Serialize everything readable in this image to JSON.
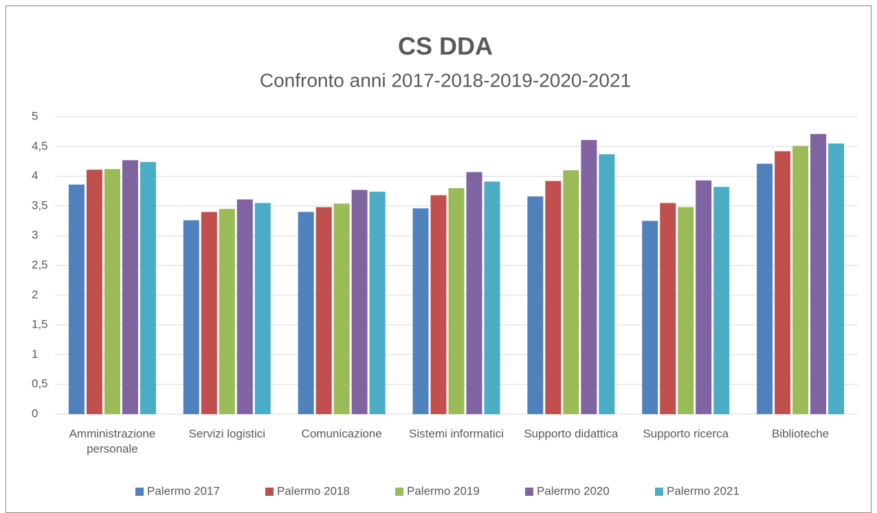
{
  "chart_data": {
    "type": "bar",
    "title": "CS DDA",
    "subtitle": "Confronto anni 2017-2018-2019-2020-2021",
    "categories": [
      "Amministrazione personale",
      "Servizi logistici",
      "Comunicazione",
      "Sistemi informatici",
      "Supporto didattica",
      "Supporto ricerca",
      "Biblioteche"
    ],
    "series": [
      {
        "name": "Palermo 2017",
        "color": "#4f81bd",
        "values": [
          3.86,
          3.26,
          3.4,
          3.46,
          3.66,
          3.25,
          4.21
        ]
      },
      {
        "name": "Palermo 2018",
        "color": "#c0504d",
        "values": [
          4.11,
          3.4,
          3.48,
          3.68,
          3.92,
          3.55,
          4.42
        ]
      },
      {
        "name": "Palermo 2019",
        "color": "#9bbb59",
        "values": [
          4.12,
          3.45,
          3.54,
          3.8,
          4.1,
          3.48,
          4.51
        ]
      },
      {
        "name": "Palermo 2020",
        "color": "#8064a2",
        "values": [
          4.27,
          3.61,
          3.77,
          4.07,
          4.61,
          3.93,
          4.71
        ]
      },
      {
        "name": "Palermo 2021",
        "color": "#4bacc6",
        "values": [
          4.24,
          3.55,
          3.74,
          3.91,
          4.37,
          3.82,
          4.55
        ]
      }
    ],
    "ylim": [
      0,
      5
    ],
    "yticks": [
      0,
      {
        "value": 0.5,
        "label": "0,5"
      },
      1,
      {
        "value": 1.5,
        "label": "1,5"
      },
      2,
      {
        "value": 2.5,
        "label": "2,5"
      },
      3,
      {
        "value": 3.5,
        "label": "3,5"
      },
      4,
      {
        "value": 4.5,
        "label": "4,5"
      },
      5
    ],
    "grid": true,
    "legend": "bottom"
  }
}
